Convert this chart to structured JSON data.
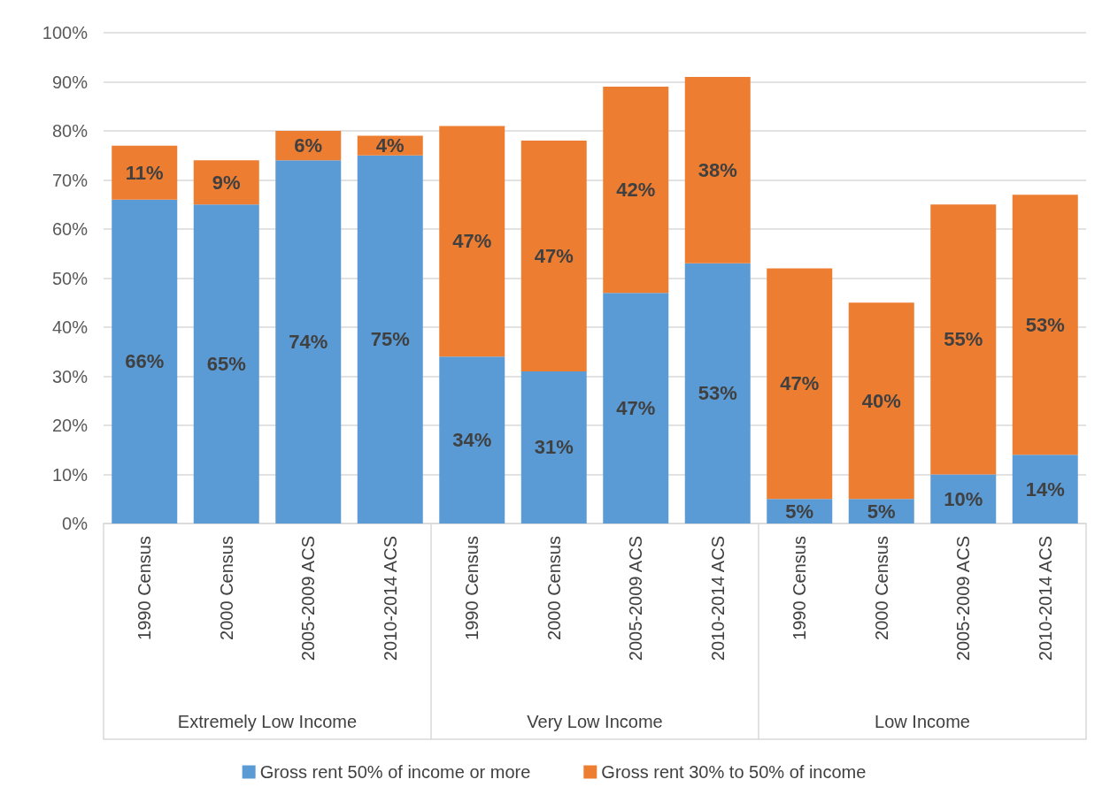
{
  "chart_data": {
    "type": "bar",
    "stacked": true,
    "grid": "y",
    "legend": "bottom",
    "categories": [
      "1990 Census",
      "2000 Census",
      "2005-2009 ACS",
      "2010-2014 ACS",
      "1990 Census",
      "2000 Census",
      "2005-2009 ACS",
      "2010-2014 ACS",
      "1990 Census",
      "2000 Census",
      "2005-2009 ACS",
      "2010-2014 ACS"
    ],
    "annotations": [
      "Extremely Low Income",
      "Very Low Income",
      "Low Income"
    ],
    "ylim": [
      0,
      100
    ],
    "yticks": [
      {
        "value": 0,
        "label": "0%"
      },
      {
        "value": 10,
        "label": "10%"
      },
      {
        "value": 20,
        "label": "20%"
      },
      {
        "value": 30,
        "label": "30%"
      },
      {
        "value": 40,
        "label": "40%"
      },
      {
        "value": 50,
        "label": "50%"
      },
      {
        "value": 60,
        "label": "60%"
      },
      {
        "value": 70,
        "label": "70%"
      },
      {
        "value": 80,
        "label": "80%"
      },
      {
        "value": 90,
        "label": "90%"
      },
      {
        "value": 100,
        "label": "100%"
      }
    ],
    "series": [
      {
        "name": "Gross rent 50% of income or more",
        "color": "#5b9bd5",
        "values": [
          66,
          65,
          74,
          75,
          34,
          31,
          47,
          53,
          5,
          5,
          10,
          14
        ],
        "value_labels": [
          "66%",
          "65%",
          "74%",
          "75%",
          "34%",
          "31%",
          "47%",
          "53%",
          "5%",
          "5%",
          "10%",
          "14%"
        ]
      },
      {
        "name": "Gross rent 30% to 50% of income",
        "color": "#ed7d31",
        "values": [
          11,
          9,
          6,
          4,
          47,
          47,
          42,
          38,
          47,
          40,
          55,
          53
        ],
        "value_labels": [
          "11%",
          "9%",
          "6%",
          "4%",
          "47%",
          "47%",
          "42%",
          "38%",
          "47%",
          "40%",
          "55%",
          "53%"
        ]
      }
    ]
  }
}
